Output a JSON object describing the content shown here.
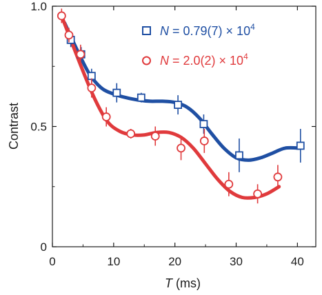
{
  "chart_data": {
    "type": "scatter",
    "xlabel_var": "T",
    "xlabel_unit": " (ms)",
    "ylabel": "Contrast",
    "xlim": [
      0,
      43
    ],
    "ylim": [
      0,
      1.0
    ],
    "xticks": [
      0,
      10,
      20,
      30,
      40
    ],
    "yticks": [
      0,
      0.5,
      1.0
    ],
    "yticklabels": [
      "0",
      "0.5",
      "1.0"
    ],
    "grid": false,
    "legend_position": "top-right",
    "series": [
      {
        "legend_var": "N",
        "legend_value": " = 0.79(7) × 10",
        "legend_exp": "4",
        "color": "#1f4fa3",
        "marker": "square",
        "x": [
          3.0,
          4.7,
          6.4,
          10.5,
          14.5,
          20.5,
          24.7,
          30.5,
          40.5
        ],
        "y": [
          0.86,
          0.8,
          0.71,
          0.64,
          0.62,
          0.59,
          0.51,
          0.38,
          0.42
        ],
        "err": [
          0.03,
          0.03,
          0.03,
          0.04,
          0.02,
          0.04,
          0.04,
          0.07,
          0.07
        ],
        "fit_x": [
          2.0,
          4.0,
          6.0,
          8.0,
          10.0,
          12.0,
          14.0,
          16.0,
          18.0,
          20.0,
          22.0,
          24.0,
          26.0,
          28.0,
          30.0,
          32.0,
          34.0,
          36.0,
          38.0,
          40.5
        ],
        "fit_y": [
          0.93,
          0.82,
          0.72,
          0.66,
          0.635,
          0.62,
          0.61,
          0.605,
          0.605,
          0.6,
          0.58,
          0.535,
          0.47,
          0.41,
          0.37,
          0.36,
          0.37,
          0.39,
          0.41,
          0.41
        ]
      },
      {
        "legend_var": "N",
        "legend_value": " = 2.0(2) × 10",
        "legend_exp": "4",
        "color": "#e03a3c",
        "marker": "circle",
        "x": [
          1.5,
          2.7,
          4.6,
          6.4,
          8.8,
          12.8,
          16.8,
          21.0,
          24.8,
          28.8,
          33.5,
          36.8
        ],
        "y": [
          0.96,
          0.88,
          0.8,
          0.66,
          0.54,
          0.47,
          0.46,
          0.41,
          0.44,
          0.26,
          0.22,
          0.29
        ],
        "err": [
          0.03,
          0.03,
          0.04,
          0.04,
          0.04,
          0.02,
          0.04,
          0.05,
          0.05,
          0.05,
          0.04,
          0.05
        ],
        "fit_x": [
          1.5,
          3.0,
          5.0,
          7.0,
          9.0,
          11.0,
          13.0,
          15.0,
          17.0,
          19.0,
          21.0,
          23.0,
          25.0,
          27.0,
          29.0,
          31.0,
          33.0,
          35.0,
          37.0
        ],
        "fit_y": [
          0.96,
          0.86,
          0.73,
          0.61,
          0.52,
          0.48,
          0.465,
          0.465,
          0.475,
          0.475,
          0.455,
          0.41,
          0.345,
          0.28,
          0.23,
          0.205,
          0.205,
          0.22,
          0.25
        ]
      }
    ]
  }
}
